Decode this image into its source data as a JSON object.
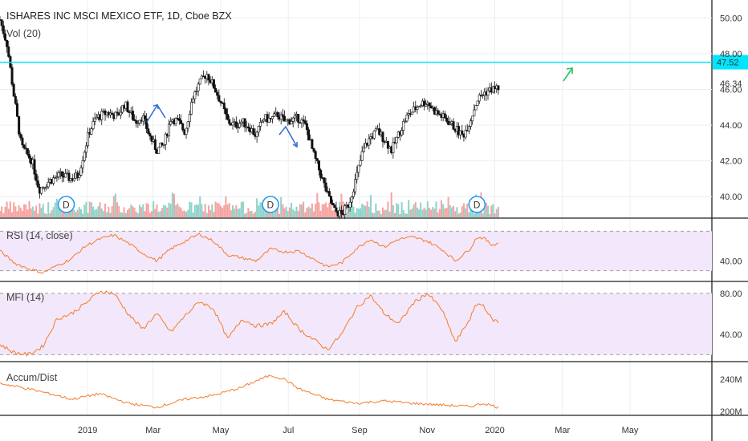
{
  "colors": {
    "up": "#26a69a",
    "down": "#ef5350",
    "candle_body": "#111111",
    "rsi": "#f57c2a",
    "band": "#f3e7fb",
    "hline": "#00e5ff",
    "arrow_blue": "#3b6fd6",
    "arrow_green": "#22c55e"
  },
  "chart_data": [
    {
      "type": "candlestick",
      "title": "ISHARES INC MSCI MEXICO ETF, 1D, Cboe BZX",
      "price_ticks": [
        "50.00",
        "48.00",
        "46.00",
        "44.00",
        "42.00",
        "40.00"
      ],
      "tick_values": [
        50,
        48,
        46,
        44,
        42,
        40
      ],
      "ylim": [
        38.8,
        51.0
      ],
      "horizontal_level": {
        "value": 47.52,
        "label": "47.52"
      },
      "last_price": {
        "value": 46.34,
        "label": "46.34"
      },
      "volume_label": "Vol (20)",
      "dividend_marker": "D",
      "dividend_x": [
        0.093,
        0.38,
        0.67
      ],
      "close_path": [
        [
          0.0,
          49.9
        ],
        [
          0.01,
          48.5
        ],
        [
          0.02,
          45.5
        ],
        [
          0.03,
          42.8
        ],
        [
          0.045,
          42.0
        ],
        [
          0.055,
          40.4
        ],
        [
          0.07,
          40.9
        ],
        [
          0.085,
          41.2
        ],
        [
          0.1,
          41.0
        ],
        [
          0.11,
          41.2
        ],
        [
          0.125,
          43.6
        ],
        [
          0.135,
          44.4
        ],
        [
          0.15,
          44.7
        ],
        [
          0.165,
          44.5
        ],
        [
          0.175,
          45.2
        ],
        [
          0.19,
          44.2
        ],
        [
          0.2,
          44.5
        ],
        [
          0.21,
          43.4
        ],
        [
          0.22,
          42.6
        ],
        [
          0.23,
          42.9
        ],
        [
          0.24,
          44.4
        ],
        [
          0.25,
          44.2
        ],
        [
          0.26,
          43.6
        ],
        [
          0.27,
          45.5
        ],
        [
          0.28,
          46.3
        ],
        [
          0.29,
          46.9
        ],
        [
          0.3,
          46.2
        ],
        [
          0.31,
          45.3
        ],
        [
          0.32,
          44.2
        ],
        [
          0.33,
          44.0
        ],
        [
          0.34,
          44.2
        ],
        [
          0.35,
          43.9
        ],
        [
          0.36,
          43.4
        ],
        [
          0.37,
          44.4
        ],
        [
          0.38,
          44.3
        ],
        [
          0.39,
          44.6
        ],
        [
          0.4,
          44.2
        ],
        [
          0.41,
          44.3
        ],
        [
          0.42,
          44.4
        ],
        [
          0.43,
          43.9
        ],
        [
          0.44,
          42.4
        ],
        [
          0.45,
          41.3
        ],
        [
          0.46,
          40.1
        ],
        [
          0.47,
          39.2
        ],
        [
          0.48,
          39.0
        ],
        [
          0.49,
          39.6
        ],
        [
          0.5,
          41.0
        ],
        [
          0.51,
          42.6
        ],
        [
          0.52,
          43.3
        ],
        [
          0.53,
          43.7
        ],
        [
          0.54,
          43.2
        ],
        [
          0.55,
          42.6
        ],
        [
          0.56,
          43.5
        ],
        [
          0.57,
          44.4
        ],
        [
          0.58,
          44.8
        ],
        [
          0.59,
          45.2
        ],
        [
          0.6,
          45.3
        ],
        [
          0.61,
          44.8
        ],
        [
          0.62,
          44.5
        ],
        [
          0.63,
          44.2
        ],
        [
          0.64,
          43.8
        ],
        [
          0.65,
          43.4
        ],
        [
          0.66,
          44.2
        ],
        [
          0.67,
          45.4
        ],
        [
          0.68,
          45.8
        ],
        [
          0.69,
          46.0
        ],
        [
          0.7,
          46.1
        ]
      ],
      "rsi": {
        "label": "RSI (14, close)",
        "ticks": [
          "40.00"
        ],
        "tick_values": [
          40
        ],
        "band": [
          30,
          70
        ],
        "ylim": [
          20,
          80
        ],
        "path": [
          [
            0.0,
            50
          ],
          [
            0.02,
            38
          ],
          [
            0.04,
            32
          ],
          [
            0.06,
            28
          ],
          [
            0.08,
            35
          ],
          [
            0.1,
            42
          ],
          [
            0.12,
            55
          ],
          [
            0.14,
            62
          ],
          [
            0.16,
            66
          ],
          [
            0.18,
            58
          ],
          [
            0.2,
            48
          ],
          [
            0.22,
            40
          ],
          [
            0.24,
            52
          ],
          [
            0.26,
            60
          ],
          [
            0.28,
            67
          ],
          [
            0.3,
            60
          ],
          [
            0.32,
            46
          ],
          [
            0.34,
            43
          ],
          [
            0.36,
            40
          ],
          [
            0.38,
            52
          ],
          [
            0.4,
            49
          ],
          [
            0.42,
            50
          ],
          [
            0.44,
            42
          ],
          [
            0.46,
            34
          ],
          [
            0.48,
            38
          ],
          [
            0.5,
            52
          ],
          [
            0.52,
            62
          ],
          [
            0.54,
            54
          ],
          [
            0.56,
            62
          ],
          [
            0.58,
            64
          ],
          [
            0.6,
            60
          ],
          [
            0.62,
            52
          ],
          [
            0.64,
            40
          ],
          [
            0.66,
            52
          ],
          [
            0.67,
            64
          ],
          [
            0.68,
            63
          ],
          [
            0.69,
            56
          ],
          [
            0.7,
            58
          ]
        ]
      },
      "mfi": {
        "label": "MFI (14)",
        "ticks": [
          "80.00",
          "40.00"
        ],
        "tick_values": [
          80,
          40
        ],
        "band": [
          20,
          80
        ],
        "ylim": [
          14,
          90
        ],
        "path": [
          [
            0.0,
            30
          ],
          [
            0.02,
            22
          ],
          [
            0.04,
            20
          ],
          [
            0.06,
            28
          ],
          [
            0.08,
            55
          ],
          [
            0.1,
            60
          ],
          [
            0.12,
            70
          ],
          [
            0.14,
            82
          ],
          [
            0.16,
            80
          ],
          [
            0.18,
            60
          ],
          [
            0.2,
            45
          ],
          [
            0.22,
            60
          ],
          [
            0.24,
            42
          ],
          [
            0.26,
            58
          ],
          [
            0.28,
            72
          ],
          [
            0.3,
            65
          ],
          [
            0.32,
            35
          ],
          [
            0.34,
            55
          ],
          [
            0.36,
            48
          ],
          [
            0.38,
            50
          ],
          [
            0.4,
            62
          ],
          [
            0.42,
            45
          ],
          [
            0.44,
            35
          ],
          [
            0.46,
            25
          ],
          [
            0.48,
            40
          ],
          [
            0.5,
            65
          ],
          [
            0.52,
            78
          ],
          [
            0.54,
            60
          ],
          [
            0.56,
            50
          ],
          [
            0.58,
            70
          ],
          [
            0.6,
            80
          ],
          [
            0.62,
            65
          ],
          [
            0.64,
            32
          ],
          [
            0.66,
            55
          ],
          [
            0.67,
            70
          ],
          [
            0.68,
            68
          ],
          [
            0.69,
            55
          ],
          [
            0.7,
            52
          ]
        ]
      },
      "accum_dist": {
        "label": "Accum/Dist",
        "ticks": [
          "240M",
          "200M"
        ],
        "tick_values": [
          240,
          200
        ],
        "ylim": [
          195,
          260
        ],
        "path": [
          [
            0.0,
            235
          ],
          [
            0.04,
            228
          ],
          [
            0.08,
            220
          ],
          [
            0.1,
            215
          ],
          [
            0.14,
            222
          ],
          [
            0.18,
            210
          ],
          [
            0.22,
            205
          ],
          [
            0.26,
            215
          ],
          [
            0.3,
            220
          ],
          [
            0.34,
            230
          ],
          [
            0.36,
            238
          ],
          [
            0.38,
            245
          ],
          [
            0.4,
            240
          ],
          [
            0.42,
            228
          ],
          [
            0.46,
            215
          ],
          [
            0.5,
            210
          ],
          [
            0.54,
            213
          ],
          [
            0.58,
            210
          ],
          [
            0.62,
            208
          ],
          [
            0.66,
            206
          ],
          [
            0.68,
            210
          ],
          [
            0.7,
            205
          ]
        ]
      },
      "x_ticks": [
        "2019",
        "Mar",
        "May",
        "Jul",
        "Sep",
        "Nov",
        "2020",
        "Mar",
        "May"
      ],
      "x_tick_pos": [
        0.123,
        0.215,
        0.31,
        0.405,
        0.505,
        0.6,
        0.695,
        0.79,
        0.885
      ]
    }
  ]
}
